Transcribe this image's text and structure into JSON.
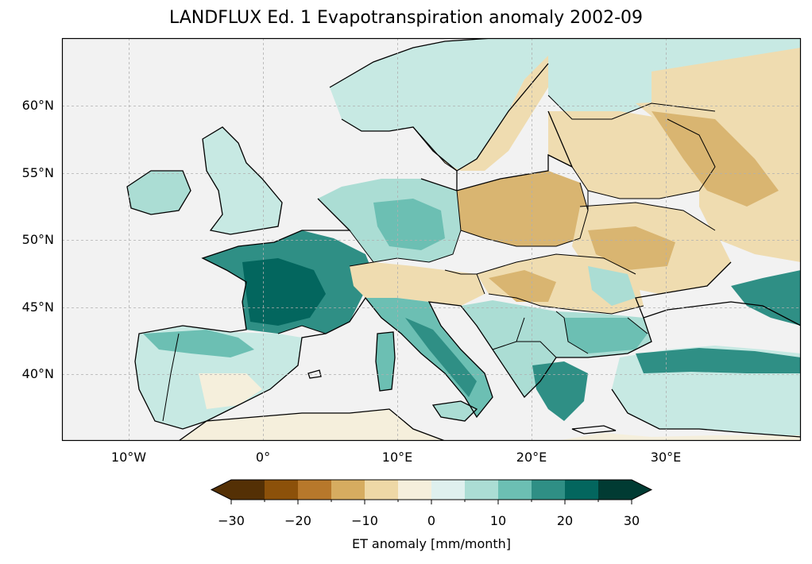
{
  "title": "LANDFLUX Ed. 1 Evapotranspiration anomaly 2002-09",
  "lat_labels": [
    "60°N",
    "55°N",
    "50°N",
    "45°N",
    "40°N"
  ],
  "lon_labels": [
    "10°W",
    "0°",
    "10°E",
    "20°E",
    "30°E"
  ],
  "map": {
    "extent_lon": [
      -15,
      40
    ],
    "extent_lat": [
      35,
      65
    ],
    "gridlines": true,
    "ocean_color": "#f2f2f2",
    "coastline_color": "#000000"
  },
  "colorbar": {
    "label": "ET anomaly [mm/month]",
    "ticks": [
      "−30",
      "−20",
      "−10",
      "0",
      "10",
      "20",
      "30"
    ],
    "range": [
      -30,
      30
    ],
    "step": 5,
    "extend": "both",
    "colors": [
      "#543005",
      "#8c510a",
      "#b7782b",
      "#d6ac60",
      "#eed8a6",
      "#f5efdc",
      "#dff0ee",
      "#abddd4",
      "#6cbfb3",
      "#2f8f85",
      "#03665e",
      "#013b33"
    ]
  },
  "regions_description_colors": {
    "positive_strong": "#03665e",
    "positive_mid": "#6cbfb3",
    "positive_light": "#c7e9e3",
    "neutral": "#f5efdc",
    "negative_light": "#efdcb0",
    "negative_mid": "#d9b571",
    "negative_strong": "#b7782b"
  }
}
